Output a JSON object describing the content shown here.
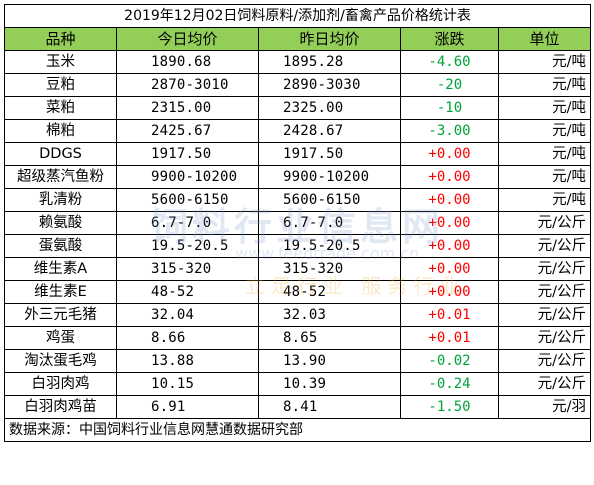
{
  "title": "2019年12月02日饲料原料/添加剂/畜禽产品价格统计表",
  "headers": {
    "name": "品种",
    "today": "今日均价",
    "yesterday": "昨日均价",
    "change": "涨跌",
    "unit": "单位"
  },
  "rows": [
    {
      "name": "玉米",
      "today": "1890.68",
      "yesterday": "1895.28",
      "change": "-4.60",
      "trend": "down",
      "unit": "元/吨"
    },
    {
      "name": "豆粕",
      "today": "2870-3010",
      "yesterday": "2890-3030",
      "change": "-20",
      "trend": "down",
      "unit": "元/吨"
    },
    {
      "name": "菜粕",
      "today": "2315.00",
      "yesterday": "2325.00",
      "change": "-10",
      "trend": "down",
      "unit": "元/吨"
    },
    {
      "name": "棉粕",
      "today": "2425.67",
      "yesterday": "2428.67",
      "change": "-3.00",
      "trend": "down",
      "unit": "元/吨"
    },
    {
      "name": "DDGS",
      "today": "1917.50",
      "yesterday": "1917.50",
      "change": "+0.00",
      "trend": "up",
      "unit": "元/吨"
    },
    {
      "name": "超级蒸汽鱼粉",
      "today": "9900-10200",
      "yesterday": "9900-10200",
      "change": "+0.00",
      "trend": "up",
      "unit": "元/吨"
    },
    {
      "name": "乳清粉",
      "today": "5600-6150",
      "yesterday": "5600-6150",
      "change": "+0.00",
      "trend": "up",
      "unit": "元/吨"
    },
    {
      "name": "赖氨酸",
      "today": "6.7-7.0",
      "yesterday": "6.7-7.0",
      "change": "+0.00",
      "trend": "up",
      "unit": "元/公斤"
    },
    {
      "name": "蛋氨酸",
      "today": "19.5-20.5",
      "yesterday": "19.5-20.5",
      "change": "+0.00",
      "trend": "up",
      "unit": "元/公斤"
    },
    {
      "name": "维生素A",
      "today": "315-320",
      "yesterday": "315-320",
      "change": "+0.00",
      "trend": "up",
      "unit": "元/公斤"
    },
    {
      "name": "维生素E",
      "today": "48-52",
      "yesterday": "48-52",
      "change": "+0.00",
      "trend": "up",
      "unit": "元/公斤"
    },
    {
      "name": "外三元毛猪",
      "today": "32.04",
      "yesterday": "32.03",
      "change": "+0.01",
      "trend": "up",
      "unit": "元/公斤"
    },
    {
      "name": "鸡蛋",
      "today": "8.66",
      "yesterday": "8.65",
      "change": "+0.01",
      "trend": "up",
      "unit": "元/公斤"
    },
    {
      "name": "淘汰蛋毛鸡",
      "today": "13.88",
      "yesterday": "13.90",
      "change": "-0.02",
      "trend": "down",
      "unit": "元/公斤"
    },
    {
      "name": "白羽肉鸡",
      "today": "10.15",
      "yesterday": "10.39",
      "change": "-0.24",
      "trend": "down",
      "unit": "元/公斤"
    },
    {
      "name": "白羽肉鸡苗",
      "today": "6.91",
      "yesterday": "8.41",
      "change": "-1.50",
      "trend": "down",
      "unit": "元/羽"
    }
  ],
  "footer": "数据来源：中国饲料行业信息网慧通数据研究部",
  "watermark": {
    "name": "饲料行业信息网",
    "url": "www.feedtrade.com.cn",
    "slogan": "立足行业 服务行业"
  },
  "colors": {
    "header_bg": "#93cf58",
    "up": "#ff0000",
    "down": "#00a33a"
  }
}
